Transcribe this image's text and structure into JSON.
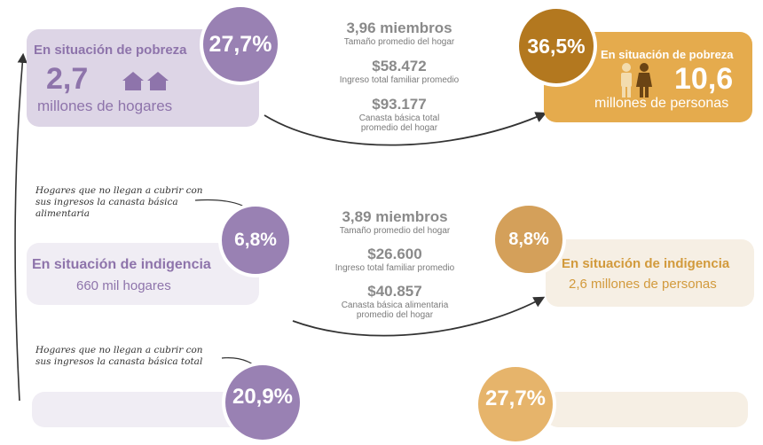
{
  "top": {
    "hogares": {
      "title": "En situación de pobreza",
      "value": "2,7",
      "unit": "millones de hogares",
      "percent": "27,7%",
      "icon": "houses-icon"
    },
    "center": [
      {
        "value": "3,96 miembros",
        "label": "Tamaño promedio del hogar"
      },
      {
        "value": "$58.472",
        "label": "Ingreso total familiar promedio"
      },
      {
        "value": "$93.177",
        "label": "Canasta básica total",
        "label2": "promedio del hogar"
      }
    ],
    "personas": {
      "title": "En situación de pobreza",
      "value": "10,6",
      "unit": "millones de personas",
      "percent": "36,5%",
      "icon": "people-icon"
    }
  },
  "note1": [
    "Hogares que no llegan a cubrir con",
    "sus ingresos la canasta básica",
    "alimentaria"
  ],
  "middle": {
    "hogares": {
      "title": "En situación de indigencia",
      "unit": "660 mil hogares",
      "percent": "6,8%"
    },
    "center": [
      {
        "value": "3,89 miembros",
        "label": "Tamaño promedio del hogar"
      },
      {
        "value": "$26.600",
        "label": "Ingreso total familiar promedio"
      },
      {
        "value": "$40.857",
        "label": "Canasta básica alimentaria",
        "label2": "promedio del hogar"
      }
    ],
    "personas": {
      "title": "En situación de indigencia",
      "unit": "2,6 millones de personas",
      "percent": "8,8%"
    }
  },
  "note2": [
    "Hogares que no llegan a cubrir con",
    "sus ingresos la canasta básica total"
  ],
  "bottom": {
    "hogares_percent": "20,9%",
    "personas_percent": "27,7%"
  },
  "colors": {
    "purple_box": "#ddd5e6",
    "purple_circle": "#9981b3",
    "purple_text": "#8e74ab",
    "orange_box": "#e5ab4d",
    "orange_circle": "#b3781f",
    "tan_box": "#f6efe4",
    "tan_circle": "#d4a05a",
    "tan_text": "#d29a3c"
  }
}
